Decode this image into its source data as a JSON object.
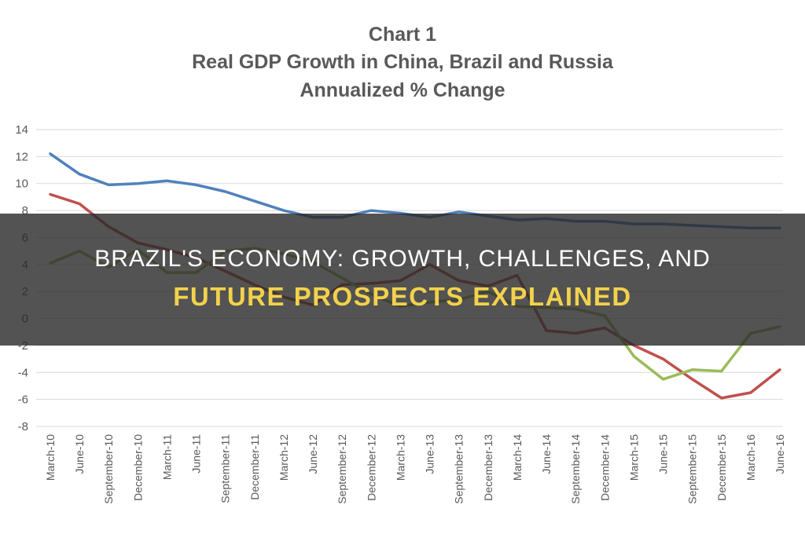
{
  "headline": {
    "line1": "BRAZIL'S ECONOMY: GROWTH, CHALLENGES, AND",
    "line2": "FUTURE PROSPECTS EXPLAINED"
  },
  "chart_data": {
    "type": "line",
    "title": [
      "Chart 1",
      "Real GDP Growth in China, Brazil and Russia",
      "Annualized % Change"
    ],
    "xlabel": "",
    "ylabel": "",
    "ylim": [
      -8,
      14
    ],
    "yticks": [
      14,
      12,
      10,
      8,
      6,
      4,
      2,
      0,
      -2,
      -4,
      -6,
      -8
    ],
    "grid": true,
    "legend": "none",
    "categories": [
      "March-10",
      "June-10",
      "September-10",
      "December-10",
      "March-11",
      "June-11",
      "September-11",
      "December-11",
      "March-12",
      "June-12",
      "September-12",
      "December-12",
      "March-13",
      "June-13",
      "September-13",
      "December-13",
      "March-14",
      "June-14",
      "September-14",
      "December-14",
      "March-15",
      "June-15",
      "September-15",
      "December-15",
      "March-16",
      "June-16"
    ],
    "series": [
      {
        "color": "#4f81bd",
        "values": [
          12.2,
          10.7,
          9.9,
          10.0,
          10.2,
          9.9,
          9.4,
          8.7,
          8.0,
          7.5,
          7.5,
          8.0,
          7.8,
          7.5,
          7.9,
          7.6,
          7.3,
          7.4,
          7.2,
          7.2,
          7.0,
          7.0,
          6.9,
          6.8,
          6.7,
          6.7
        ]
      },
      {
        "color": "#c0504d",
        "values": [
          9.2,
          8.5,
          6.8,
          5.6,
          5.1,
          4.5,
          3.5,
          2.5,
          1.6,
          1.0,
          2.5,
          2.6,
          2.8,
          4.0,
          2.8,
          2.4,
          3.2,
          -0.9,
          -1.1,
          -0.7,
          -2.0,
          -3.0,
          -4.5,
          -5.9,
          -5.5,
          -3.8
        ]
      },
      {
        "color": "#9bbb59",
        "values": [
          4.1,
          5.0,
          3.8,
          5.1,
          3.4,
          3.4,
          5.0,
          5.2,
          4.8,
          4.2,
          3.0,
          1.8,
          0.9,
          1.2,
          1.4,
          2.0,
          0.9,
          0.8,
          0.7,
          0.2,
          -2.8,
          -4.5,
          -3.8,
          -3.9,
          -1.1,
          -0.6
        ]
      }
    ]
  }
}
